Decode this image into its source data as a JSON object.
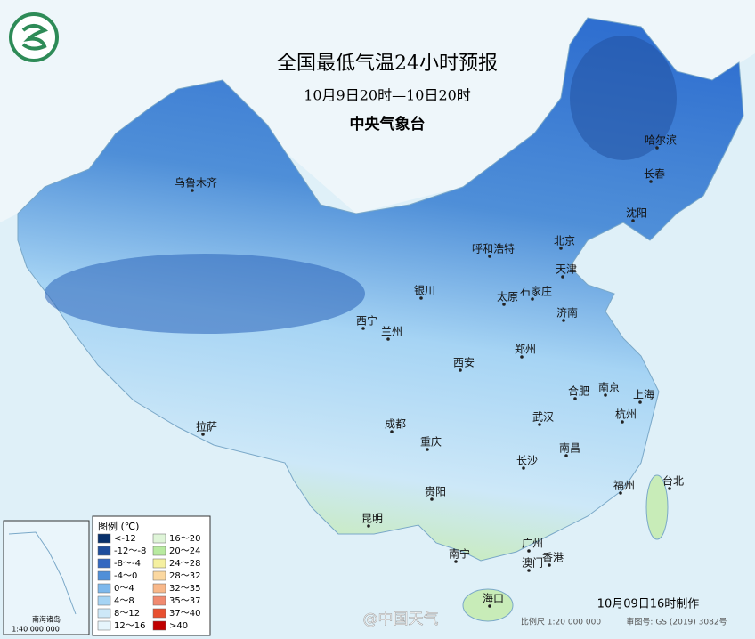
{
  "header": {
    "title": "全国最低气温24小时预报",
    "subtitle": "10月9日20时—10日20时",
    "issuer": "中央气象台"
  },
  "cities": [
    "哈尔滨",
    "长春",
    "沈阳",
    "北京",
    "天津",
    "呼和浩特",
    "石家庄",
    "太原",
    "银川",
    "济南",
    "西宁",
    "兰州",
    "郑州",
    "西安",
    "合肥",
    "南京",
    "上海",
    "杭州",
    "乌鲁木齐",
    "拉萨",
    "成都",
    "重庆",
    "武汉",
    "南昌",
    "长沙",
    "贵阳",
    "昆明",
    "福州",
    "台北",
    "广州",
    "南宁",
    "澳门",
    "香港",
    "海口"
  ],
  "legend": {
    "title": "图例 (℃)",
    "items": [
      {
        "label": "<-12",
        "color": "#08306b"
      },
      {
        "label": "-12～-8",
        "color": "#1f4e9c"
      },
      {
        "label": "-8～-4",
        "color": "#3468c0"
      },
      {
        "label": "-4～0",
        "color": "#4f8fd8"
      },
      {
        "label": "0～4",
        "color": "#7db8ec"
      },
      {
        "label": "4～8",
        "color": "#a6d4f4"
      },
      {
        "label": "8～12",
        "color": "#cde8f8"
      },
      {
        "label": "12～16",
        "color": "#e6f5fc"
      },
      {
        "label": "16～20",
        "color": "#dff5d8"
      },
      {
        "label": "20～24",
        "color": "#b8eaa0"
      },
      {
        "label": "24～28",
        "color": "#f5f0a0"
      },
      {
        "label": "28～32",
        "color": "#fbd8a0"
      },
      {
        "label": "32～35",
        "color": "#f8b88a"
      },
      {
        "label": "35～37",
        "color": "#f08a70"
      },
      {
        "label": "37～40",
        "color": "#e85030"
      },
      {
        "label": ">40",
        "color": "#c00000"
      }
    ]
  },
  "inset": {
    "title": "南海诸岛",
    "scale": "1:40 000 000"
  },
  "footer": {
    "made": "10月09日16时制作",
    "scale": "比例尺 1:20 000 000",
    "approval": "审图号: GS (2019) 3082号",
    "watermark": "@中国天气"
  }
}
